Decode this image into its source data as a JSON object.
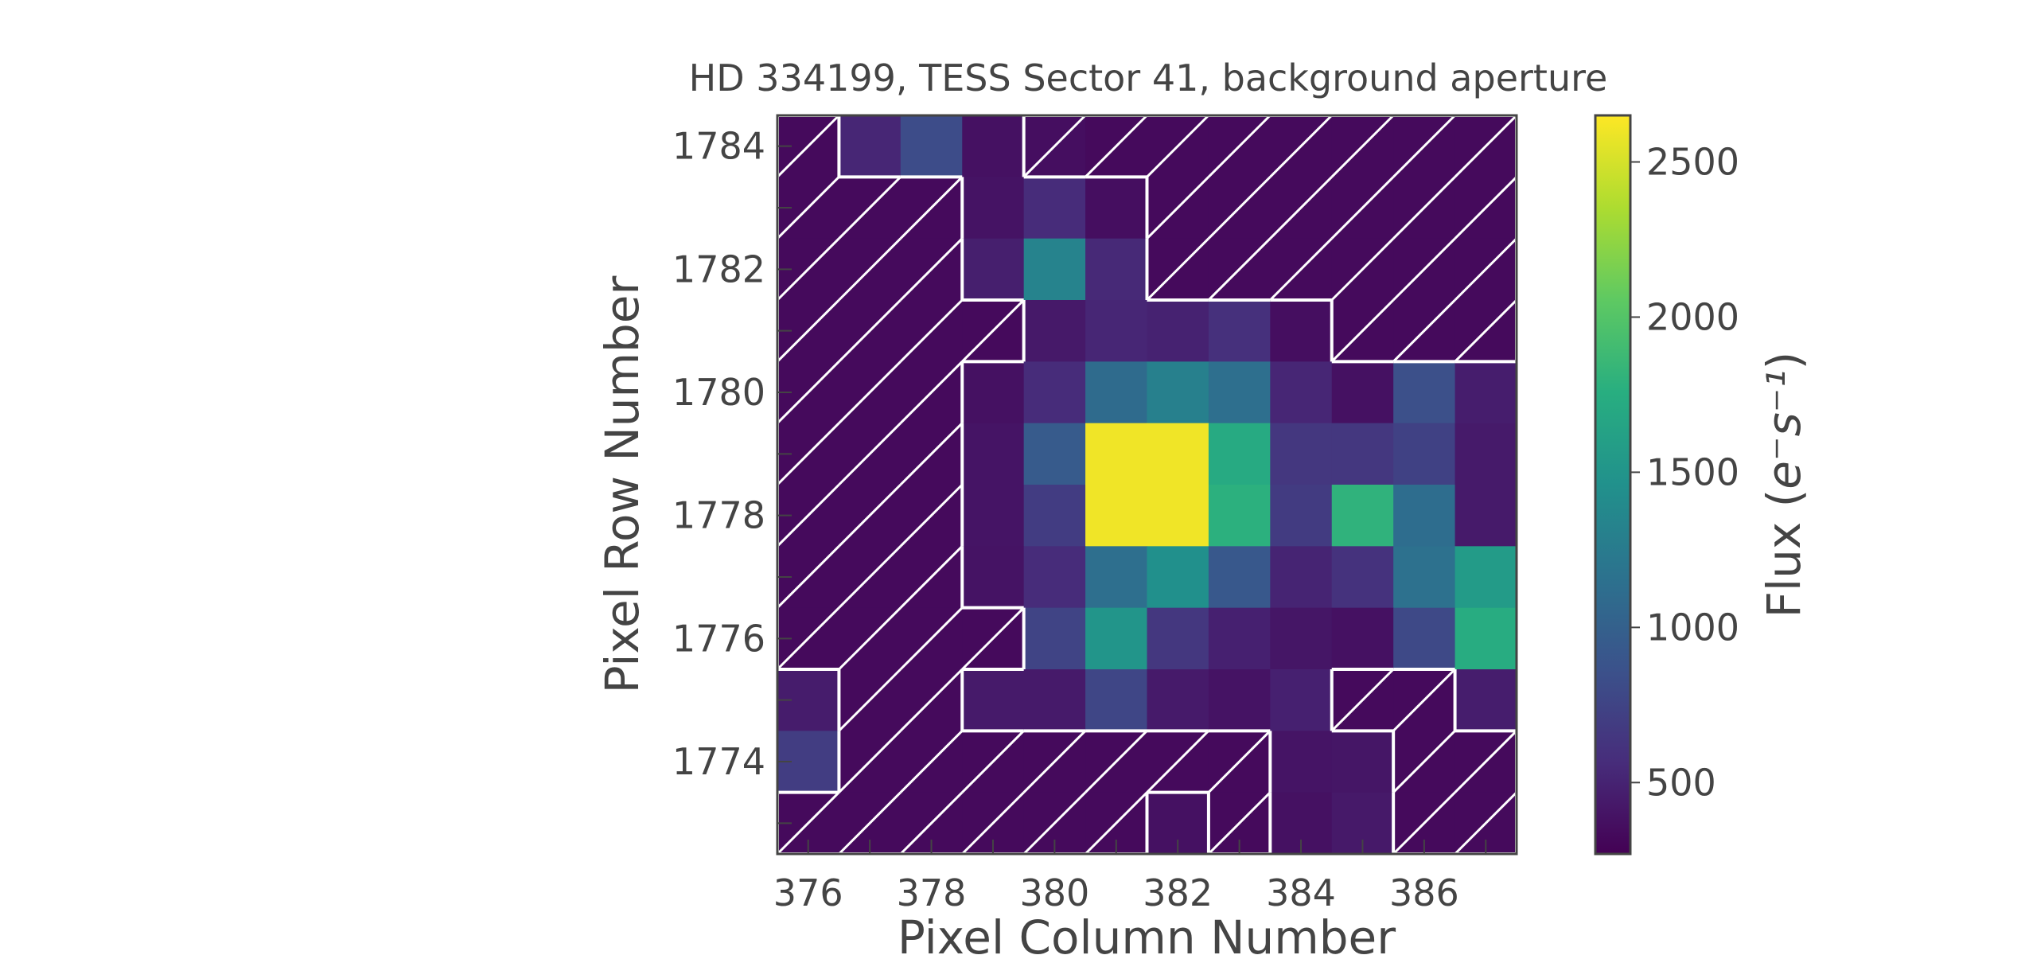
{
  "chart_data": {
    "type": "heatmap",
    "title": "HD 334199, TESS Sector 41, background aperture",
    "xlabel": "Pixel Column Number",
    "ylabel": "Pixel Row Number",
    "colorbar_label_prefix": "Flux (",
    "colorbar_label_math": "e⁻s⁻¹",
    "colorbar_label_suffix": ")",
    "colormap": "viridis",
    "x": [
      376,
      377,
      378,
      379,
      380,
      381,
      382,
      383,
      384,
      385,
      386,
      387
    ],
    "y": [
      1773,
      1774,
      1775,
      1776,
      1777,
      1778,
      1779,
      1780,
      1781,
      1782,
      1783,
      1784
    ],
    "xlim": [
      375.5,
      387.5
    ],
    "ylim": [
      1772.5,
      1784.5
    ],
    "x_ticks": [
      "376",
      "378",
      "380",
      "382",
      "384",
      "386"
    ],
    "y_ticks": [
      "1774",
      "1776",
      "1778",
      "1780",
      "1782",
      "1784"
    ],
    "colorbar_ticks": [
      "500",
      "1000",
      "1500",
      "2000",
      "2500"
    ],
    "vmin": 270,
    "vmax": 2650,
    "values_top_row_first": [
      [
        330,
        520,
        820,
        380,
        360,
        330,
        330,
        330,
        330,
        330,
        330,
        330
      ],
      [
        330,
        330,
        330,
        390,
        560,
        360,
        330,
        330,
        330,
        330,
        330,
        330
      ],
      [
        330,
        330,
        330,
        470,
        1330,
        540,
        330,
        330,
        330,
        330,
        330,
        330
      ],
      [
        330,
        330,
        330,
        330,
        430,
        520,
        490,
        590,
        360,
        330,
        330,
        330
      ],
      [
        330,
        330,
        330,
        380,
        560,
        1100,
        1300,
        1130,
        520,
        380,
        850,
        460
      ],
      [
        330,
        330,
        330,
        400,
        950,
        2600,
        2600,
        1720,
        650,
        650,
        730,
        440
      ],
      [
        330,
        330,
        330,
        400,
        690,
        2600,
        2600,
        1780,
        680,
        1800,
        1120,
        440
      ],
      [
        330,
        330,
        330,
        390,
        560,
        1130,
        1450,
        920,
        510,
        610,
        1150,
        1560
      ],
      [
        330,
        330,
        330,
        330,
        750,
        1500,
        650,
        480,
        410,
        380,
        790,
        1740
      ],
      [
        450,
        330,
        330,
        440,
        440,
        770,
        440,
        390,
        480,
        330,
        330,
        460
      ],
      [
        700,
        330,
        330,
        330,
        330,
        330,
        330,
        330,
        400,
        410,
        330,
        330
      ],
      [
        330,
        330,
        330,
        330,
        330,
        330,
        380,
        330,
        380,
        430,
        330,
        330
      ]
    ],
    "hatched_aperture_mask_top_row_first": [
      [
        1,
        0,
        0,
        0,
        1,
        1,
        1,
        1,
        1,
        1,
        1,
        1
      ],
      [
        1,
        1,
        1,
        0,
        0,
        0,
        1,
        1,
        1,
        1,
        1,
        1
      ],
      [
        1,
        1,
        1,
        0,
        0,
        0,
        1,
        1,
        1,
        1,
        1,
        1
      ],
      [
        1,
        1,
        1,
        1,
        0,
        0,
        0,
        0,
        0,
        1,
        1,
        1
      ],
      [
        1,
        1,
        1,
        0,
        0,
        0,
        0,
        0,
        0,
        0,
        0,
        0
      ],
      [
        1,
        1,
        1,
        0,
        0,
        0,
        0,
        0,
        0,
        0,
        0,
        0
      ],
      [
        1,
        1,
        1,
        0,
        0,
        0,
        0,
        0,
        0,
        0,
        0,
        0
      ],
      [
        1,
        1,
        1,
        0,
        0,
        0,
        0,
        0,
        0,
        0,
        0,
        0
      ],
      [
        1,
        1,
        1,
        1,
        0,
        0,
        0,
        0,
        0,
        0,
        0,
        0
      ],
      [
        0,
        1,
        1,
        0,
        0,
        0,
        0,
        0,
        0,
        1,
        1,
        0
      ],
      [
        0,
        1,
        1,
        1,
        1,
        1,
        1,
        1,
        0,
        0,
        1,
        1
      ],
      [
        1,
        1,
        1,
        1,
        1,
        1,
        0,
        1,
        0,
        0,
        1,
        1
      ]
    ],
    "hatch_color": "#ffffff",
    "axis_color": "#444444",
    "grid": false
  }
}
